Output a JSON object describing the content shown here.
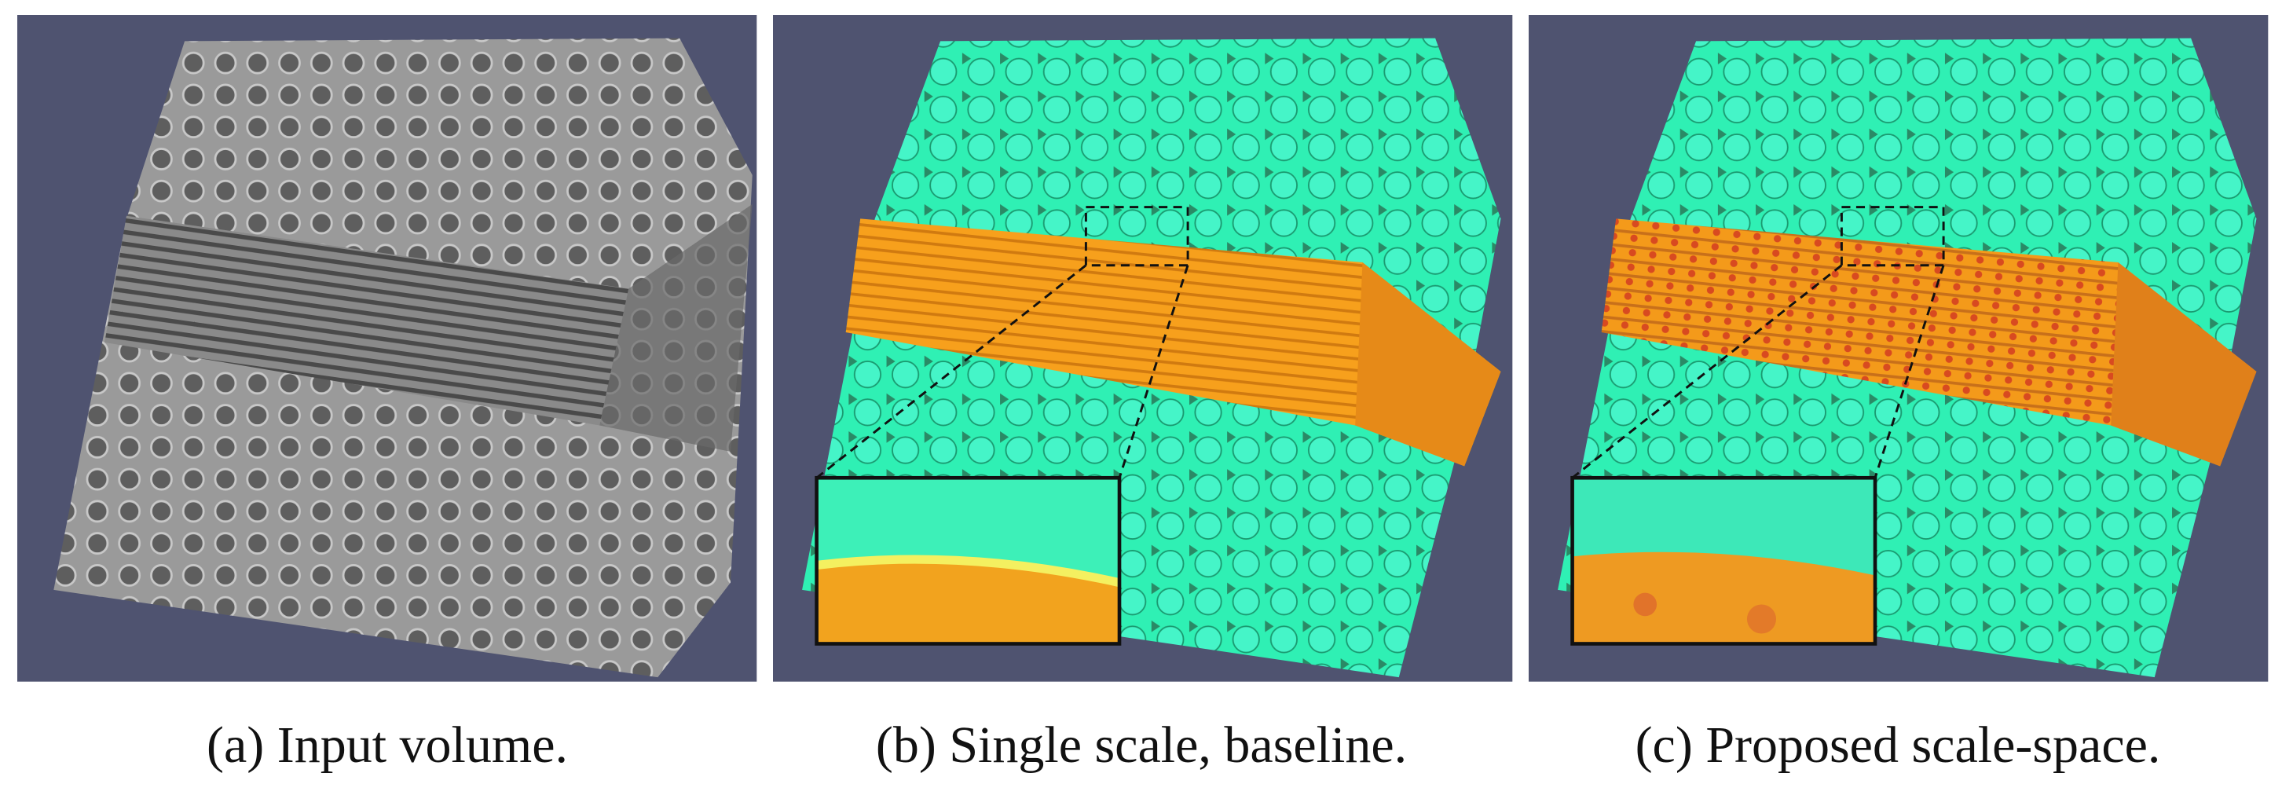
{
  "figure": {
    "panels": [
      {
        "caption": "(a) Input volume."
      },
      {
        "caption": "(b) Single scale, baseline."
      },
      {
        "caption": "(c) Proposed scale-space."
      }
    ]
  }
}
